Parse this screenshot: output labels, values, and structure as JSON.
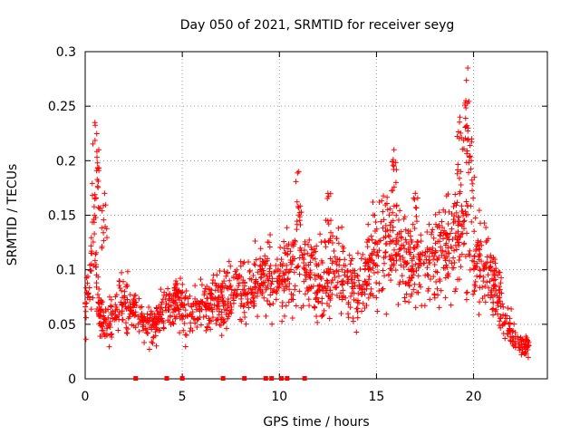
{
  "chart_data": {
    "type": "scatter",
    "title": "Day 050 of 2021, SRMTID for receiver seyg",
    "xlabel": "GPS time / hours",
    "ylabel": "SRMTID / TECUs",
    "xlim": [
      0,
      23.8
    ],
    "ylim": [
      0,
      0.3
    ],
    "x_ticks": [
      0,
      5,
      10,
      15,
      20
    ],
    "x_tick_labels": [
      "0",
      "5",
      "10",
      "15",
      "20"
    ],
    "y_ticks": [
      0,
      0.05,
      0.1,
      0.15,
      0.2,
      0.25,
      0.3
    ],
    "y_tick_labels": [
      "0",
      "0.05",
      "0.1",
      "0.15",
      "0.2",
      "0.25",
      "0.3"
    ],
    "grid": true,
    "marker": "+",
    "series_color": "#ff0000",
    "zero_markers_x": [
      2.6,
      4.2,
      5.0,
      7.1,
      8.2,
      9.3,
      9.6,
      10.1,
      10.4,
      11.3
    ],
    "profile": [
      [
        0.0,
        0.06
      ],
      [
        0.2,
        0.09
      ],
      [
        0.4,
        0.12
      ],
      [
        0.5,
        0.15
      ],
      [
        0.6,
        0.08
      ],
      [
        0.8,
        0.06
      ],
      [
        1.0,
        0.05
      ],
      [
        1.5,
        0.06
      ],
      [
        2.0,
        0.07
      ],
      [
        2.5,
        0.06
      ],
      [
        3.0,
        0.05
      ],
      [
        3.5,
        0.05
      ],
      [
        4.0,
        0.06
      ],
      [
        4.5,
        0.07
      ],
      [
        5.0,
        0.065
      ],
      [
        5.5,
        0.06
      ],
      [
        6.0,
        0.065
      ],
      [
        6.5,
        0.07
      ],
      [
        7.0,
        0.07
      ],
      [
        7.5,
        0.075
      ],
      [
        8.0,
        0.085
      ],
      [
        8.5,
        0.08
      ],
      [
        9.0,
        0.09
      ],
      [
        9.5,
        0.1
      ],
      [
        10.0,
        0.09
      ],
      [
        10.5,
        0.1
      ],
      [
        11.0,
        0.11
      ],
      [
        11.5,
        0.1
      ],
      [
        12.0,
        0.09
      ],
      [
        12.5,
        0.09
      ],
      [
        13.0,
        0.1
      ],
      [
        13.5,
        0.09
      ],
      [
        14.0,
        0.08
      ],
      [
        14.5,
        0.1
      ],
      [
        15.0,
        0.12
      ],
      [
        15.5,
        0.13
      ],
      [
        16.0,
        0.12
      ],
      [
        16.5,
        0.11
      ],
      [
        17.0,
        0.1
      ],
      [
        17.5,
        0.1
      ],
      [
        18.0,
        0.11
      ],
      [
        18.5,
        0.12
      ],
      [
        19.0,
        0.13
      ],
      [
        19.5,
        0.14
      ],
      [
        20.0,
        0.12
      ],
      [
        20.5,
        0.1
      ],
      [
        21.0,
        0.09
      ],
      [
        21.5,
        0.06
      ],
      [
        22.0,
        0.04
      ],
      [
        22.5,
        0.03
      ],
      [
        22.8,
        0.03
      ]
    ],
    "spikes": [
      [
        0.5,
        0.235
      ],
      [
        0.7,
        0.21
      ],
      [
        1.0,
        0.17
      ],
      [
        11.0,
        0.19
      ],
      [
        12.5,
        0.17
      ],
      [
        15.9,
        0.21
      ],
      [
        17.0,
        0.17
      ],
      [
        19.3,
        0.24
      ],
      [
        19.7,
        0.285
      ],
      [
        19.6,
        0.255
      ],
      [
        19.9,
        0.22
      ]
    ]
  }
}
